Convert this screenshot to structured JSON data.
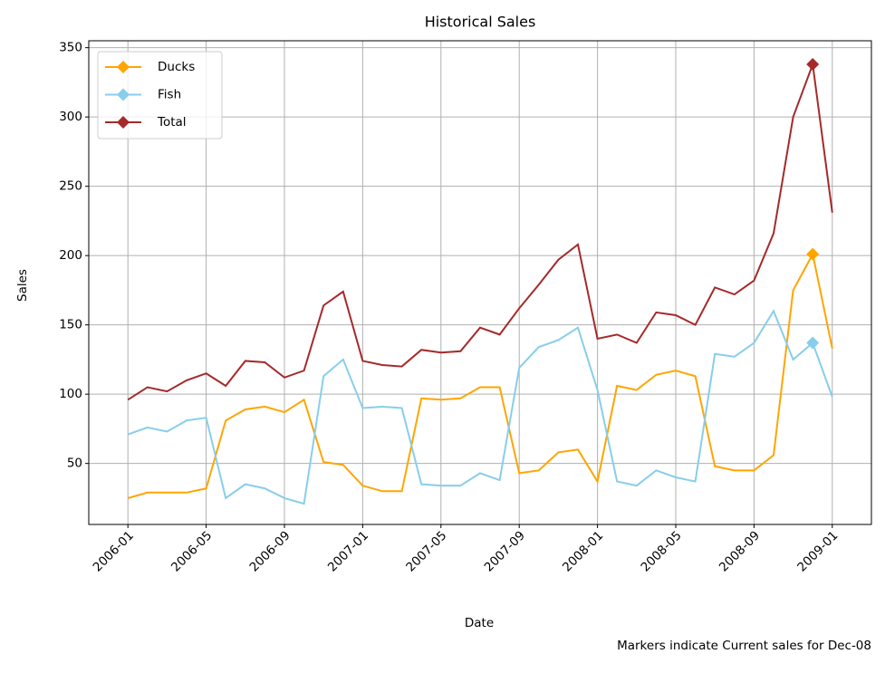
{
  "chart_data": {
    "type": "line",
    "title": "Historical Sales",
    "x_label": "Date",
    "y_label": "Sales",
    "note": "Markers indicate Current sales for Dec-08",
    "marker_x": "2008-12",
    "x": [
      "2006-01",
      "2006-02",
      "2006-03",
      "2006-04",
      "2006-05",
      "2006-06",
      "2006-07",
      "2006-08",
      "2006-09",
      "2006-10",
      "2006-11",
      "2006-12",
      "2007-01",
      "2007-02",
      "2007-03",
      "2007-04",
      "2007-05",
      "2007-06",
      "2007-07",
      "2007-08",
      "2007-09",
      "2007-10",
      "2007-11",
      "2007-12",
      "2008-01",
      "2008-02",
      "2008-03",
      "2008-04",
      "2008-05",
      "2008-06",
      "2008-07",
      "2008-08",
      "2008-09",
      "2008-10",
      "2008-11",
      "2008-12",
      "2009-01"
    ],
    "series": [
      {
        "name": "Ducks",
        "color": "#ffa500",
        "values": [
          25,
          29,
          29,
          29,
          32,
          81,
          89,
          91,
          87,
          96,
          51,
          49,
          34,
          30,
          30,
          97,
          96,
          97,
          105,
          105,
          43,
          45,
          58,
          60,
          37,
          106,
          103,
          114,
          117,
          113,
          48,
          45,
          45,
          56,
          175,
          201,
          133
        ]
      },
      {
        "name": "Fish",
        "color": "#87ceeb",
        "values": [
          71,
          76,
          73,
          81,
          83,
          25,
          35,
          32,
          25,
          21,
          113,
          125,
          90,
          91,
          90,
          35,
          34,
          34,
          43,
          38,
          119,
          134,
          139,
          148,
          103,
          37,
          34,
          45,
          40,
          37,
          129,
          127,
          137,
          160,
          125,
          137,
          98
        ]
      },
      {
        "name": "Total",
        "color": "#a52a2a",
        "values": [
          96,
          105,
          102,
          110,
          115,
          106,
          124,
          123,
          112,
          117,
          164,
          174,
          124,
          121,
          120,
          132,
          130,
          131,
          148,
          143,
          162,
          179,
          197,
          208,
          140,
          143,
          137,
          159,
          157,
          150,
          177,
          172,
          182,
          216,
          300,
          338,
          231
        ]
      }
    ],
    "xlim": [
      "2005-11",
      "2009-03"
    ],
    "ylim": [
      6,
      355
    ],
    "xticks": [
      "2006-01",
      "2006-05",
      "2006-09",
      "2007-01",
      "2007-05",
      "2007-09",
      "2008-01",
      "2008-05",
      "2008-09",
      "2009-01"
    ],
    "yticks": [
      50,
      100,
      150,
      200,
      250,
      300,
      350
    ],
    "grid": true,
    "legend": "upper left"
  }
}
